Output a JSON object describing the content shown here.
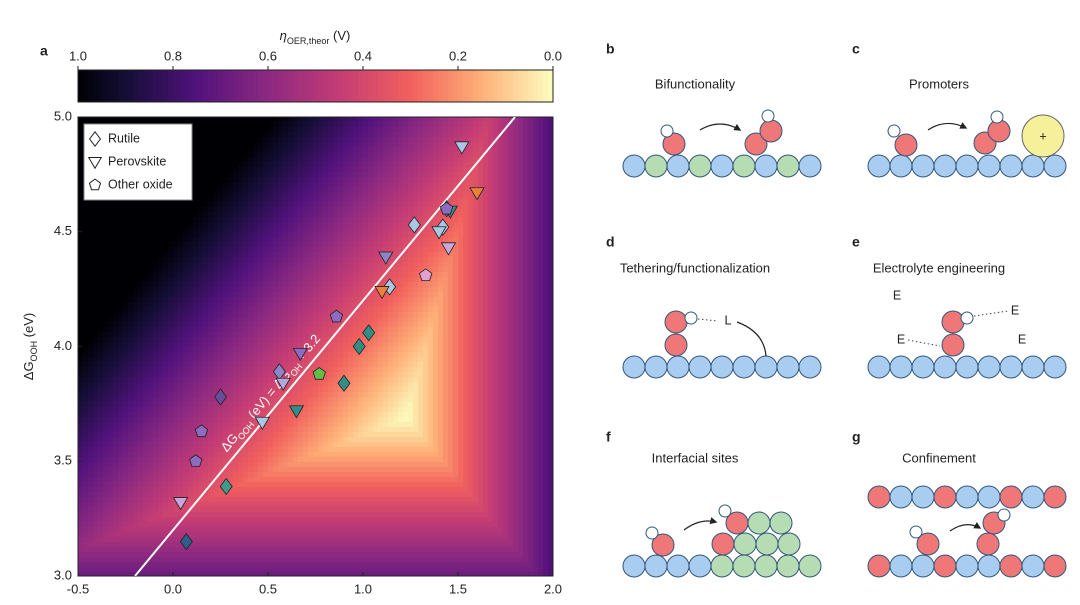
{
  "chart_data": {
    "type": "scatter",
    "panel": "a",
    "colorbar": {
      "label": [
        "η",
        "OER,theor",
        " (V)"
      ],
      "lim": [
        1,
        0
      ],
      "ticks": [
        {
          "value": 1,
          "label": "1.0"
        },
        0.8,
        0.6,
        0.4,
        0.2,
        {
          "value": 0,
          "label": "0.0"
        }
      ]
    },
    "ylabel": [
      "ΔG",
      "OOH",
      " (eV)"
    ],
    "xlim": [
      -0.5,
      2.0
    ],
    "ylim": [
      3.0,
      5.0
    ],
    "xticks": [
      -0.5,
      {
        "value": 0,
        "label": "0.0"
      },
      0.5,
      {
        "value": 1,
        "label": "1.0"
      },
      1.5,
      {
        "value": 2,
        "label": "2.0"
      }
    ],
    "yticks": [
      {
        "value": 3,
        "label": "3.0"
      },
      3.5,
      {
        "value": 4,
        "label": "4.0"
      },
      4.5,
      {
        "value": 5,
        "label": "5.0"
      }
    ],
    "scaling_line": {
      "slope": 1,
      "intercept": 3.2,
      "label": [
        "ΔG",
        "OOH",
        " (eV) = ΔG",
        "OH",
        " + 3.2"
      ]
    },
    "legend": "upper left",
    "series": [
      {
        "name": "Rutile",
        "marker": "diamond",
        "x": [
          0.07,
          0.28,
          0.25,
          0.56,
          0.9,
          0.98,
          1.03,
          1.14,
          1.27,
          1.42,
          1.44
        ],
        "values": [
          3.15,
          3.39,
          3.78,
          3.89,
          3.84,
          4.0,
          4.06,
          4.26,
          4.53,
          4.52,
          4.6
        ],
        "colors": [
          "#2d5f8a",
          "#3f9a8e",
          "#6a4c9c",
          "#8a86c8",
          "#2f8f86",
          "#2f8f86",
          "#2f8f86",
          "#a9c8e6",
          "#a9c8e6",
          "#a9c8e6",
          "#7a8fd0"
        ]
      },
      {
        "name": "Perovskite",
        "marker": "triangle-down",
        "x": [
          0.04,
          0.47,
          0.58,
          0.65,
          0.67,
          1.1,
          1.12,
          1.4,
          1.45,
          1.46,
          1.52,
          1.6
        ],
        "values": [
          3.32,
          3.67,
          3.84,
          3.72,
          3.97,
          4.24,
          4.39,
          4.5,
          4.43,
          4.59,
          4.87,
          4.67
        ],
        "colors": [
          "#c8a8dc",
          "#a9c8e6",
          "#b5a9dc",
          "#2f8f86",
          "#8c6cc0",
          "#e8823a",
          "#8a86c8",
          "#a9c8e6",
          "#c8a8dc",
          "#2f8f86",
          "#a9c8e6",
          "#e8823a"
        ]
      },
      {
        "name": "Other oxide",
        "marker": "pentagon",
        "x": [
          0.12,
          0.15,
          0.77,
          0.86,
          1.33,
          1.44
        ],
        "values": [
          3.5,
          3.63,
          3.88,
          4.13,
          4.31,
          4.6
        ],
        "colors": [
          "#8c6cc0",
          "#8c6cc0",
          "#5fbf4a",
          "#8c6cc0",
          "#e0a0d0",
          "#8c6cc0"
        ]
      }
    ]
  },
  "panels": [
    {
      "letter": "b",
      "title": "Bifunctionality"
    },
    {
      "letter": "c",
      "title": "Promoters",
      "sign": "+"
    },
    {
      "letter": "d",
      "title": "Tethering/functionalization",
      "tag": "L"
    },
    {
      "letter": "e",
      "title": "Electrolyte engineering",
      "tags": [
        "E",
        "E",
        "E",
        "E"
      ]
    },
    {
      "letter": "f",
      "title": "Interfacial sites"
    },
    {
      "letter": "g",
      "title": "Confinement"
    }
  ]
}
